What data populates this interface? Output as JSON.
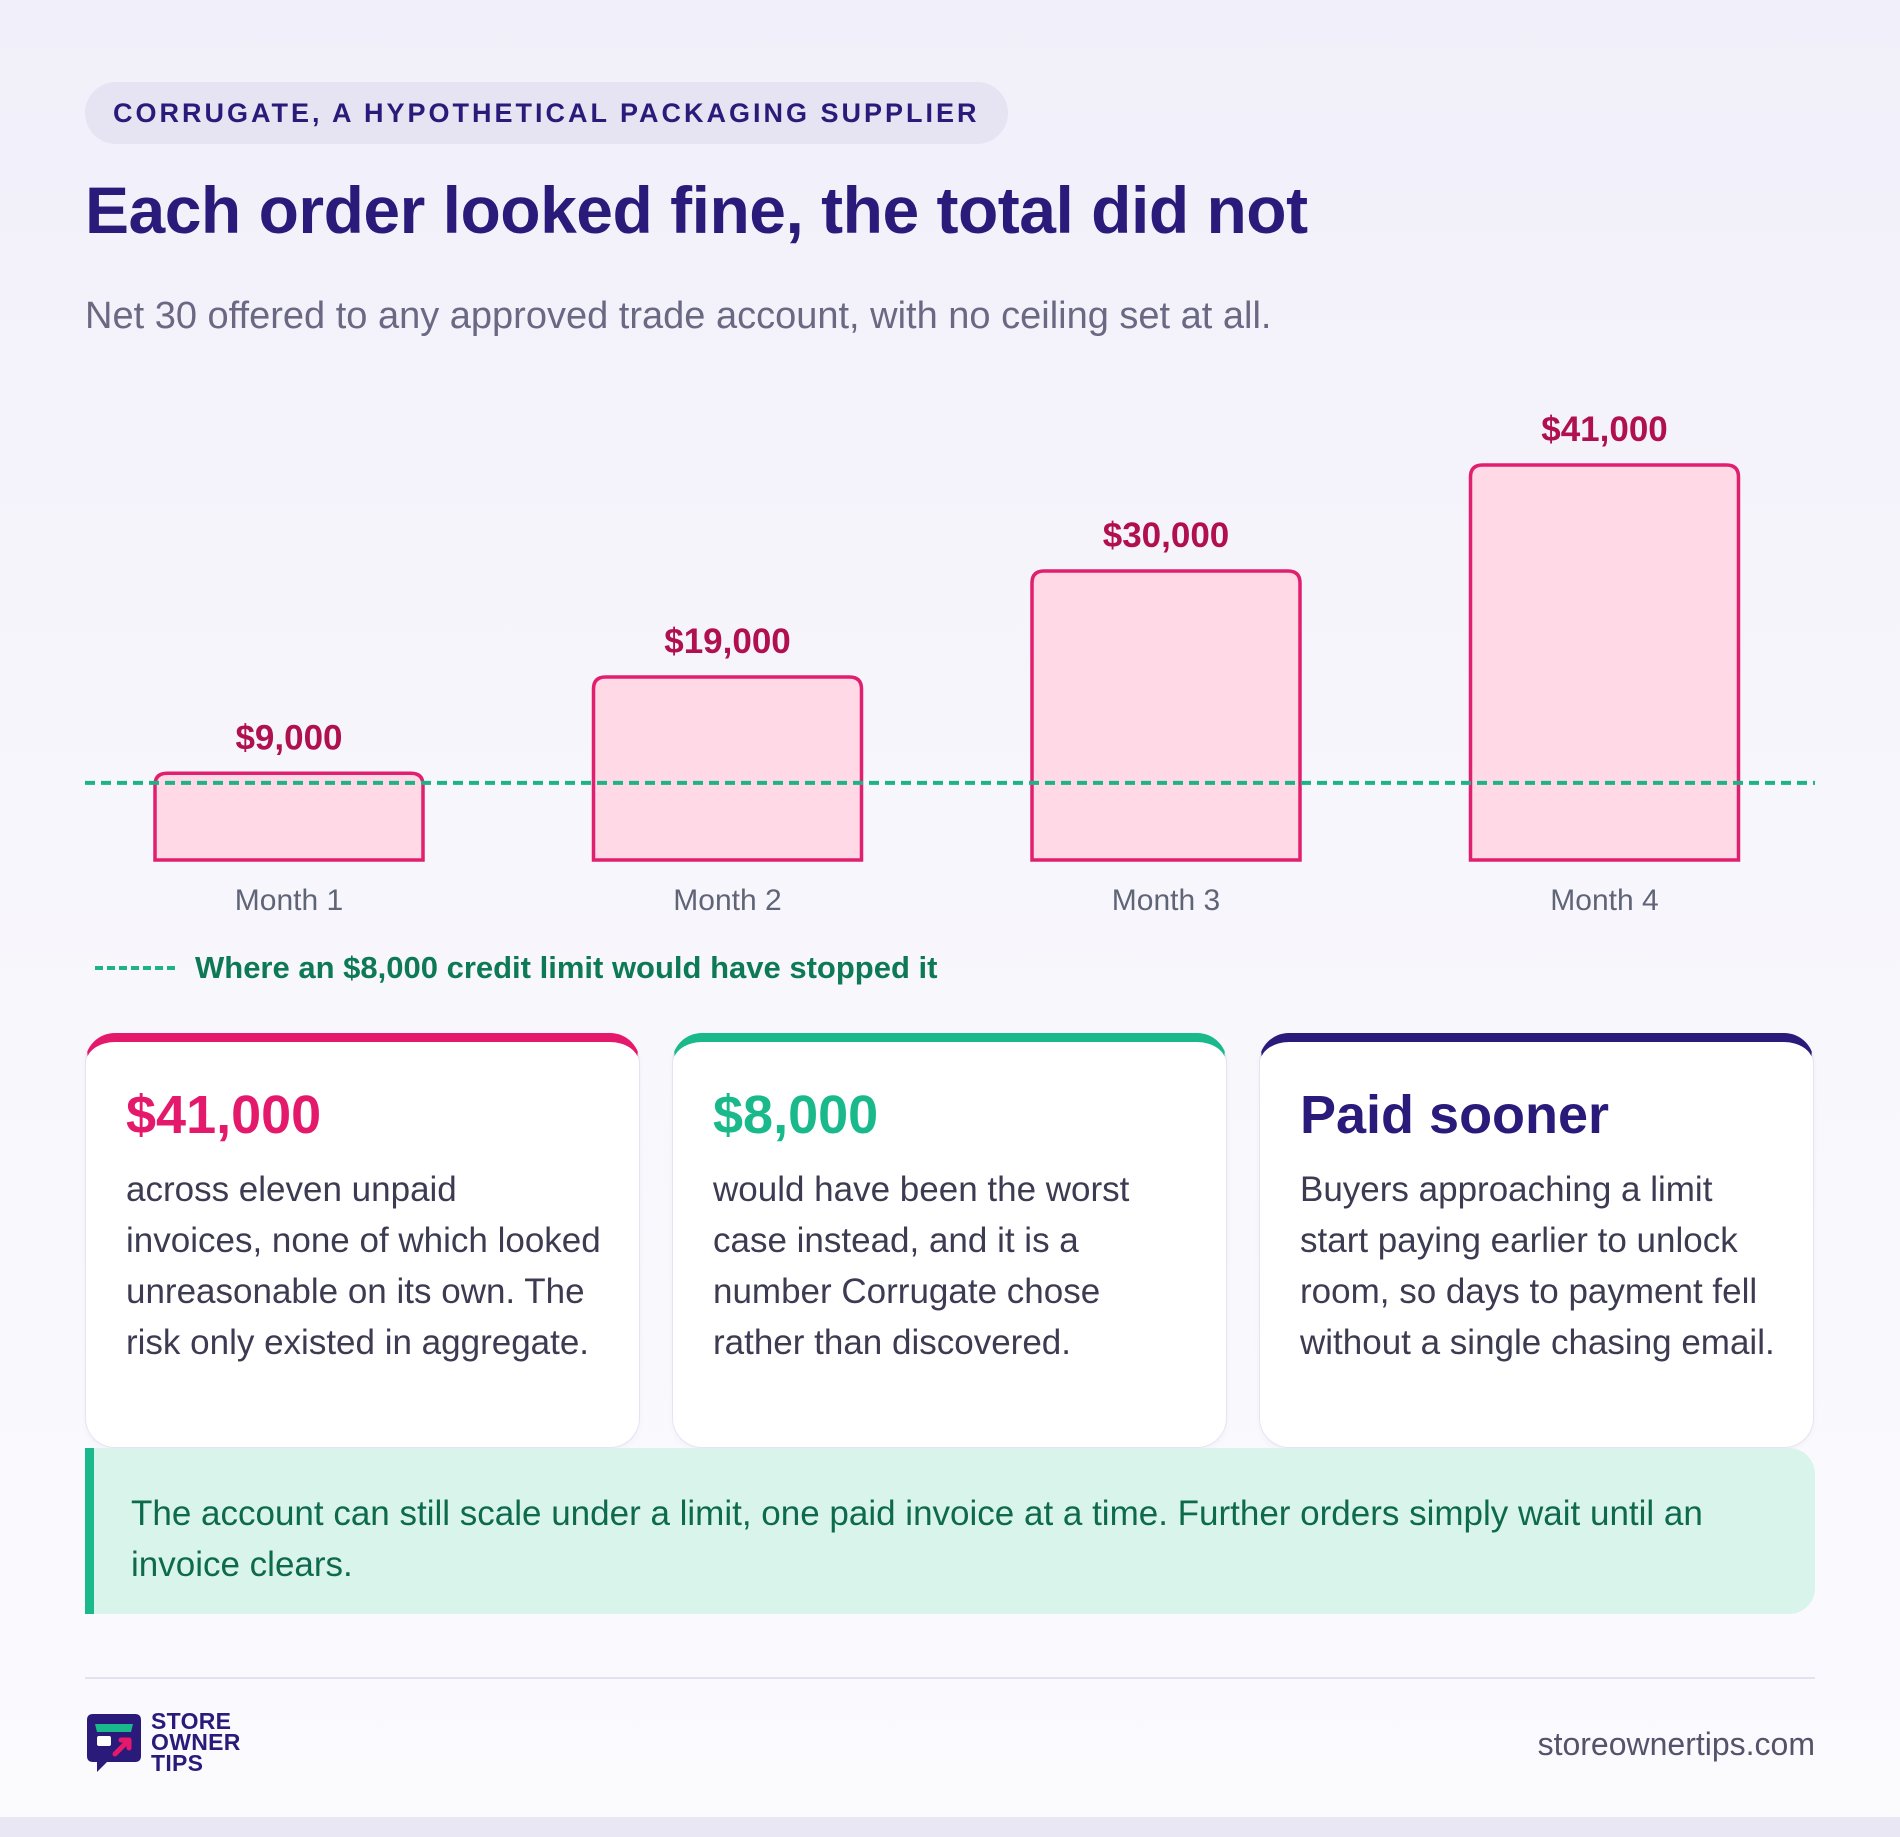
{
  "header": {
    "eyebrow": "CORRUGATE, A HYPOTHETICAL PACKAGING SUPPLIER",
    "title": "Each order looked fine, the total did not",
    "subtitle": "Net 30 offered to any approved trade account, with no ceiling set at all."
  },
  "chart_data": {
    "type": "bar",
    "categories": [
      "Month 1",
      "Month 2",
      "Month 3",
      "Month 4"
    ],
    "values": [
      9000,
      19000,
      30000,
      41000
    ],
    "data_labels": [
      "$9,000",
      "$19,000",
      "$30,000",
      "$41,000"
    ],
    "title": "",
    "xlabel": "",
    "ylabel": "",
    "reference_line": {
      "value": 8000,
      "label": "Where an $8,000 credit limit would have stopped it",
      "style": "dashed",
      "color": "#1db386"
    },
    "bar_fill": "#ffd9e6",
    "bar_stroke": "#e01f6e",
    "grid": false
  },
  "cards": [
    {
      "value": "$41,000",
      "text": "across eleven unpaid invoices, none of which looked unreasonable on its own. The risk only existed in aggregate.",
      "accent": "#e5196b"
    },
    {
      "value": "$8,000",
      "text": "would have been the worst case instead, and it is a number Corrugate chose rather than discovered.",
      "accent": "#19b98b"
    },
    {
      "value": "Paid sooner",
      "text": "Buyers approaching a limit start paying earlier to unlock room, so days to payment fell without a single chasing email.",
      "accent": "#2a1a7a"
    }
  ],
  "callout": {
    "text": "The account can still scale under a limit, one paid invoice at a time. Further orders simply wait until an invoice clears."
  },
  "footer": {
    "logo_text": [
      "STORE",
      "OWNER",
      "TIPS"
    ],
    "logo_icon": "storefront-icon",
    "site": "storeownertips.com"
  }
}
